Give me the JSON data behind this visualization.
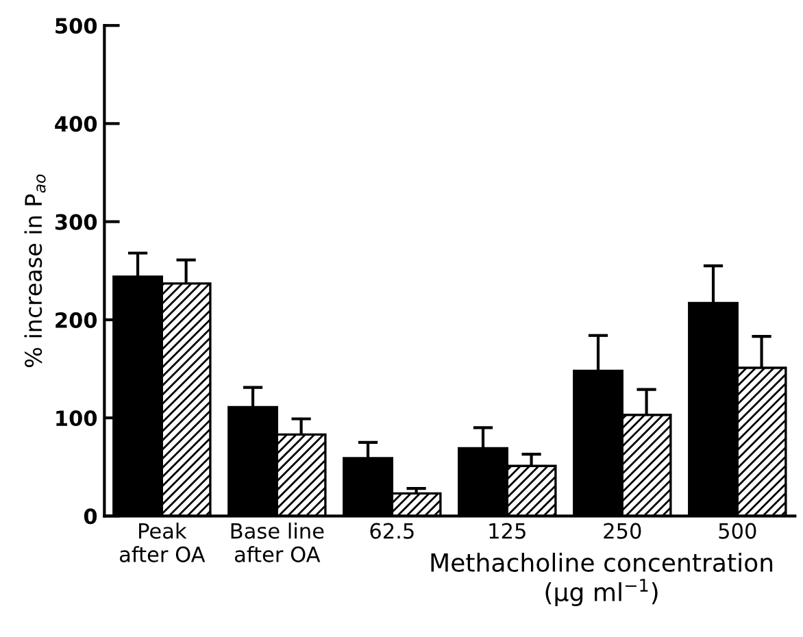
{
  "chart_data": {
    "type": "bar",
    "ylabel": "% increase in P$_{ao}$",
    "xlabel": "Methacholine concentration\n(μg ml$^{−1}$)",
    "categories": [
      "Peak\nafter OA",
      "Base line\nafter OA",
      "62.5",
      "125",
      "250",
      "500"
    ],
    "series": [
      {
        "color": "#000000",
        "values": [
          244,
          111,
          59,
          69,
          148,
          217
        ],
        "errors": [
          [
            244,
            268
          ],
          [
            111,
            131
          ],
          [
            59,
            75
          ],
          [
            69,
            90
          ],
          [
            148,
            184
          ],
          [
            217,
            255
          ]
        ]
      },
      {
        "color": "#000000",
        "values": [
          237,
          83,
          23,
          51,
          103,
          151
        ],
        "errors": [
          [
            237,
            261
          ],
          [
            83,
            99
          ],
          [
            23,
            28
          ],
          [
            51,
            63
          ],
          [
            103,
            129
          ],
          [
            151,
            183
          ]
        ]
      }
    ],
    "ylim": [
      0,
      500
    ],
    "yticks": [
      0,
      100,
      200,
      300,
      400,
      500
    ],
    "grid": false,
    "legend": false
  }
}
